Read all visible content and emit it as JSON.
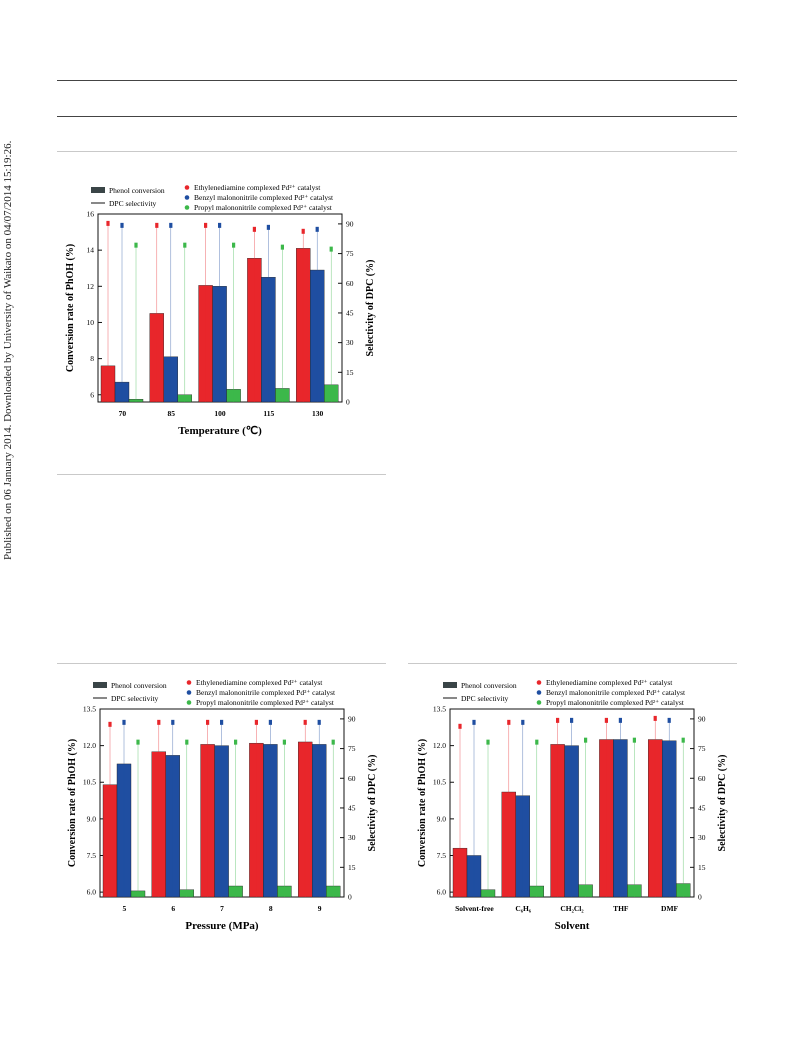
{
  "watermark": "Published on 06 January 2014. Downloaded by University of Waikato on 04/07/2014 15:19:26.",
  "colors": {
    "ethylenediamine": "#e8262b",
    "benzyl": "#1f4ea1",
    "propyl": "#3cb84a",
    "legend_bar": "#3a4547"
  },
  "legend": {
    "phenol_conversion": "Phenol conversion",
    "dpc_selectivity": "DPC selectivity",
    "series": [
      {
        "name": "Ethylenediamine complexed Pd²⁺ catalyst",
        "color": "#e8262b"
      },
      {
        "name": "Benzyl malononitrile complexed Pd²⁺ catalyst",
        "color": "#1f4ea1"
      },
      {
        "name": "Propyl malononitrile complexed Pd²⁺ catalyst",
        "color": "#3cb84a"
      }
    ]
  },
  "chart_data": [
    {
      "type": "bar",
      "xlabel": "Temperature (℃)",
      "ylabel": "Conversion rate of PhOH (%)",
      "y2label": "Selectivity of DPC (%)",
      "categories": [
        "70",
        "85",
        "100",
        "115",
        "130"
      ],
      "ylim": [
        5.6,
        16
      ],
      "yticks": [
        "6",
        "8",
        "10",
        "12",
        "14",
        "16"
      ],
      "y2lim": [
        0,
        95
      ],
      "y2ticks": [
        "0",
        "15",
        "30",
        "45",
        "60",
        "75",
        "90"
      ],
      "series": [
        {
          "name": "Ethylenediamine complexed Pd²⁺ catalyst",
          "conversion": [
            7.6,
            10.5,
            12.05,
            13.55,
            14.1
          ],
          "selectivity": [
            90,
            89,
            89,
            87,
            86
          ]
        },
        {
          "name": "Benzyl malononitrile complexed Pd²⁺ catalyst",
          "conversion": [
            6.7,
            8.1,
            12.0,
            12.5,
            12.9
          ],
          "selectivity": [
            89,
            89,
            89,
            88,
            87
          ]
        },
        {
          "name": "Propyl malononitrile complexed Pd²⁺ catalyst",
          "conversion": [
            5.75,
            6.0,
            6.3,
            6.35,
            6.55
          ],
          "selectivity": [
            79,
            79,
            79,
            78,
            77
          ]
        }
      ]
    },
    {
      "type": "bar",
      "xlabel": "Pressure (MPa)",
      "ylabel": "Conversion rate of PhOH (%)",
      "y2label": "Selectivity of DPC (%)",
      "categories": [
        "5",
        "6",
        "7",
        "8",
        "9"
      ],
      "ylim": [
        5.8,
        13.5
      ],
      "yticks": [
        "6.0",
        "7.5",
        "9.0",
        "10.5",
        "12.0",
        "13.5"
      ],
      "y2lim": [
        0,
        95
      ],
      "y2ticks": [
        "0",
        "15",
        "30",
        "45",
        "60",
        "75",
        "90"
      ],
      "series": [
        {
          "name": "Ethylenediamine complexed Pd²⁺ catalyst",
          "conversion": [
            10.4,
            11.75,
            12.05,
            12.1,
            12.15
          ],
          "selectivity": [
            87,
            88,
            88,
            88,
            88
          ]
        },
        {
          "name": "Benzyl malononitrile complexed Pd²⁺ catalyst",
          "conversion": [
            11.25,
            11.6,
            12.0,
            12.05,
            12.05
          ],
          "selectivity": [
            88,
            88,
            88,
            88,
            88
          ]
        },
        {
          "name": "Propyl malononitrile complexed Pd²⁺ catalyst",
          "conversion": [
            6.05,
            6.1,
            6.25,
            6.25,
            6.25
          ],
          "selectivity": [
            78,
            78,
            78,
            78,
            78
          ]
        }
      ]
    },
    {
      "type": "bar",
      "xlabel": "Solvent",
      "ylabel": "Conversion rate of PhOH (%)",
      "y2label": "Selectivity of DPC (%)",
      "categories": [
        "Solvent-free",
        "C₆H₆",
        "CH₂Cl₂",
        "THF",
        "DMF"
      ],
      "ylim": [
        5.8,
        13.5
      ],
      "yticks": [
        "6.0",
        "7.5",
        "9.0",
        "10.5",
        "12.0",
        "13.5"
      ],
      "y2lim": [
        0,
        95
      ],
      "y2ticks": [
        "0",
        "15",
        "30",
        "45",
        "60",
        "75",
        "90"
      ],
      "series": [
        {
          "name": "Ethylenediamine complexed Pd²⁺ catalyst",
          "conversion": [
            7.8,
            10.1,
            12.05,
            12.25,
            12.25
          ],
          "selectivity": [
            86,
            88,
            89,
            89,
            90
          ]
        },
        {
          "name": "Benzyl malononitrile complexed Pd²⁺ catalyst",
          "conversion": [
            7.5,
            9.95,
            12.0,
            12.25,
            12.2
          ],
          "selectivity": [
            88,
            88,
            89,
            89,
            89
          ]
        },
        {
          "name": "Propyl malononitrile complexed Pd²⁺ catalyst",
          "conversion": [
            6.1,
            6.25,
            6.3,
            6.3,
            6.35
          ],
          "selectivity": [
            78,
            78,
            79,
            79,
            79
          ]
        }
      ]
    }
  ]
}
